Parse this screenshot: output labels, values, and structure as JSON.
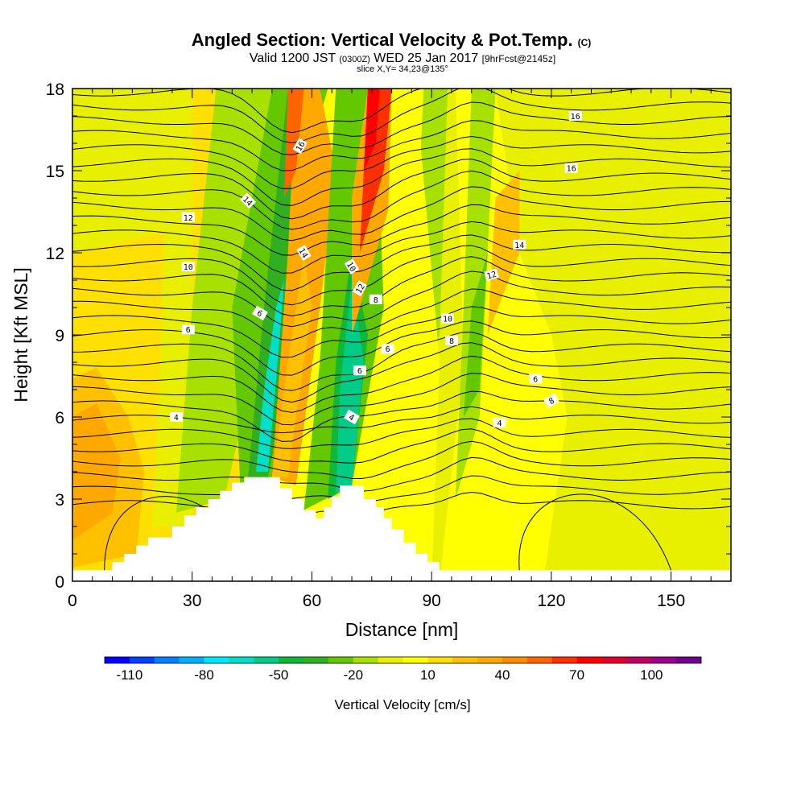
{
  "chart_data": {
    "type": "heatmap",
    "title": "Angled Section: Vertical Velocity & Pot.Temp.",
    "title_tag": "(C)",
    "subtitle_valid": "Valid 1200 JST",
    "subtitle_zulu": "(0300Z)",
    "subtitle_date": "WED 25 Jan 2017",
    "subtitle_fcst": "[9hrFcst@2145z]",
    "slice_label": "slice X,Y= 34,23@135°",
    "xlabel": "Distance [nm]",
    "ylabel": "Height [Kft MSL]",
    "xlim": [
      0,
      165
    ],
    "ylim": [
      0,
      18
    ],
    "xticks": [
      0,
      30,
      60,
      90,
      120,
      150
    ],
    "yticks": [
      0,
      3,
      6,
      9,
      12,
      15,
      18
    ],
    "colorbar": {
      "label": "Vertical Velocity [cm/s]",
      "range": [
        -120,
        120
      ],
      "tick_values": [
        -110,
        -80,
        -50,
        -20,
        10,
        40,
        70,
        100
      ],
      "tick_labels": [
        "-110",
        "-80",
        "-50",
        "-20",
        "10",
        "40",
        "70",
        "100"
      ],
      "colors": [
        "#0000ff",
        "#0040ff",
        "#0080ff",
        "#00b0ff",
        "#00e8ff",
        "#00e0c8",
        "#00cc88",
        "#10b838",
        "#30b020",
        "#64c800",
        "#a8e000",
        "#e8f000",
        "#ffff00",
        "#ffe000",
        "#ffc000",
        "#ffa800",
        "#ff8c00",
        "#ff6400",
        "#ff3000",
        "#ff0000",
        "#e00030",
        "#c00060",
        "#9c0088",
        "#700090"
      ]
    },
    "contour_field": "Potential Temperature (C)",
    "contour_label_values": [
      "4",
      "4",
      "4",
      "6",
      "6",
      "6",
      "6",
      "6",
      "8",
      "8",
      "8",
      "10",
      "10",
      "10",
      "12",
      "12",
      "12",
      "14",
      "14",
      "14",
      "16",
      "16",
      "16"
    ],
    "terrain_profile_kft": [
      [
        0,
        0.4
      ],
      [
        10,
        0.4
      ],
      [
        10,
        0.7
      ],
      [
        13,
        0.7
      ],
      [
        13,
        1.0
      ],
      [
        16,
        1.0
      ],
      [
        16,
        1.3
      ],
      [
        19,
        1.3
      ],
      [
        19,
        1.6
      ],
      [
        25,
        1.6
      ],
      [
        25,
        2.0
      ],
      [
        28,
        2.0
      ],
      [
        28,
        2.4
      ],
      [
        31,
        2.4
      ],
      [
        31,
        2.7
      ],
      [
        34,
        2.7
      ],
      [
        34,
        3.0
      ],
      [
        37,
        3.0
      ],
      [
        37,
        3.3
      ],
      [
        40,
        3.3
      ],
      [
        40,
        3.6
      ],
      [
        43,
        3.6
      ],
      [
        43,
        3.8
      ],
      [
        47,
        3.8
      ],
      [
        52,
        3.8
      ],
      [
        52,
        3.4
      ],
      [
        55,
        3.4
      ],
      [
        55,
        3.0
      ],
      [
        58,
        3.0
      ],
      [
        58,
        2.6
      ],
      [
        61,
        2.6
      ],
      [
        61,
        2.3
      ],
      [
        63,
        2.3
      ],
      [
        63,
        2.7
      ],
      [
        65,
        2.7
      ],
      [
        65,
        3.1
      ],
      [
        67,
        3.1
      ],
      [
        67,
        3.5
      ],
      [
        73,
        3.5
      ],
      [
        73,
        3.0
      ],
      [
        76,
        3.0
      ],
      [
        76,
        2.7
      ],
      [
        78,
        2.7
      ],
      [
        78,
        2.3
      ],
      [
        80,
        2.3
      ],
      [
        80,
        1.9
      ],
      [
        83,
        1.9
      ],
      [
        83,
        1.4
      ],
      [
        86,
        1.4
      ],
      [
        86,
        1.0
      ],
      [
        89,
        1.0
      ],
      [
        89,
        0.7
      ],
      [
        92,
        0.7
      ],
      [
        92,
        0.4
      ],
      [
        165,
        0.4
      ]
    ]
  }
}
